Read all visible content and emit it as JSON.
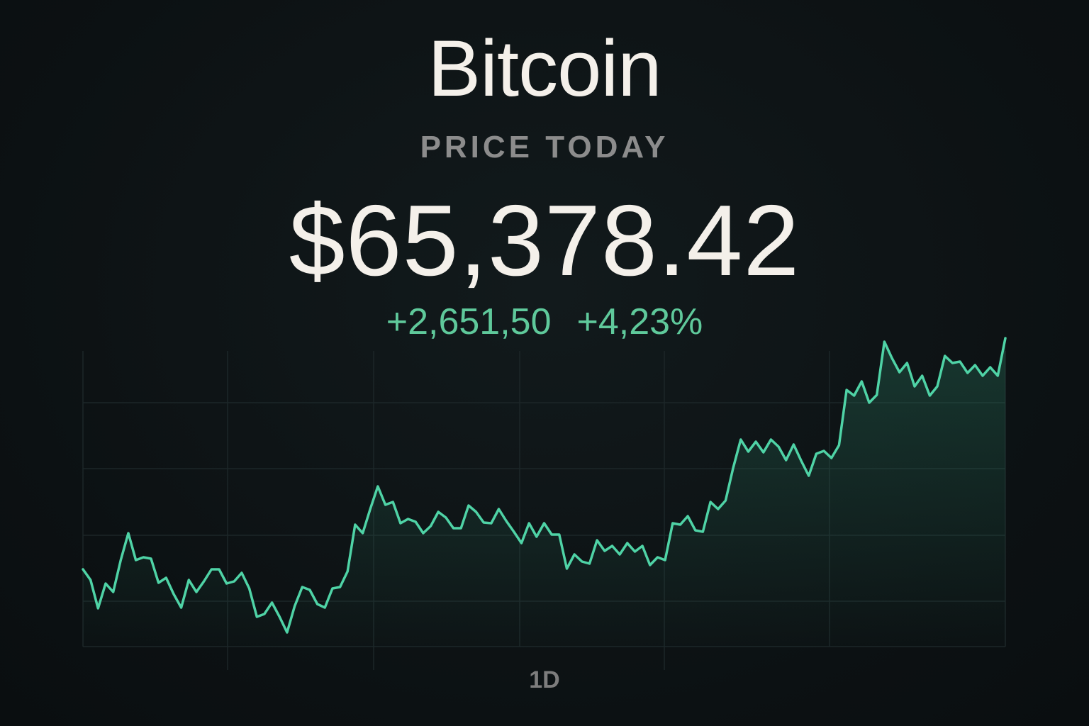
{
  "header": {
    "title": "Bitcoin",
    "subtitle": "PRICE TODAY",
    "price": "$65,378.42",
    "change": "+2,651,50",
    "change_percent": "+4,23%"
  },
  "chart_data": {
    "type": "line",
    "color": "#4fd3a6",
    "ylim": [
      0,
      450
    ],
    "values": [
      109,
      94,
      54,
      89,
      77,
      122,
      160,
      122,
      126,
      124,
      90,
      97,
      74,
      55,
      94,
      77,
      92,
      109,
      109,
      89,
      92,
      104,
      82,
      42,
      46,
      62,
      42,
      20,
      57,
      84,
      80,
      60,
      55,
      82,
      84,
      106,
      172,
      160,
      194,
      226,
      200,
      204,
      174,
      180,
      176,
      160,
      170,
      190,
      182,
      167,
      167,
      199,
      190,
      175,
      174,
      194,
      177,
      162,
      146,
      174,
      155,
      174,
      158,
      158,
      110,
      130,
      120,
      117,
      150,
      135,
      142,
      130,
      146,
      134,
      142,
      115,
      126,
      122,
      174,
      172,
      184,
      164,
      162,
      204,
      194,
      206,
      252,
      292,
      275,
      289,
      274,
      292,
      282,
      263,
      285,
      262,
      241,
      272,
      276,
      266,
      284,
      362,
      354,
      374,
      344,
      355,
      430,
      407,
      387,
      400,
      367,
      382,
      354,
      367,
      410,
      400,
      402,
      386,
      397,
      382,
      394,
      382,
      435
    ],
    "period": "1D"
  }
}
